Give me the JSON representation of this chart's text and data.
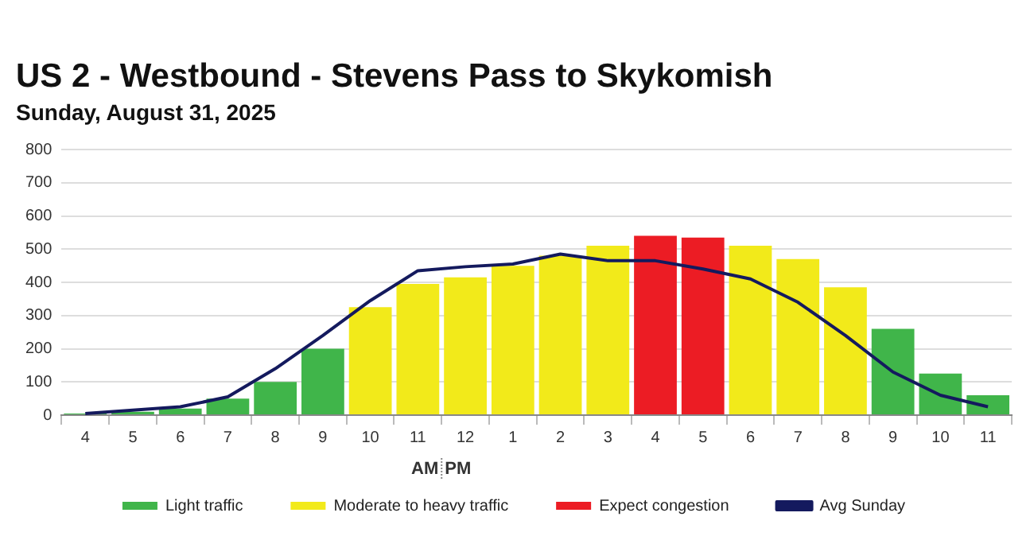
{
  "chart_data": {
    "type": "bar",
    "title": "US 2 - Westbound - Stevens Pass to Skykomish",
    "subtitle": "Sunday, August 31, 2025",
    "categories": [
      "4",
      "5",
      "6",
      "7",
      "8",
      "9",
      "10",
      "11",
      "12",
      "1",
      "2",
      "3",
      "4",
      "5",
      "6",
      "7",
      "8",
      "9",
      "10",
      "11"
    ],
    "series": [
      {
        "name": "Light traffic",
        "color": "#40b54a",
        "values": [
          5,
          10,
          20,
          50,
          100,
          200,
          null,
          null,
          null,
          null,
          null,
          null,
          null,
          null,
          null,
          null,
          null,
          260,
          125,
          60
        ]
      },
      {
        "name": "Moderate to heavy traffic",
        "color": "#f2ea1a",
        "values": [
          null,
          null,
          null,
          null,
          null,
          null,
          325,
          395,
          415,
          450,
          480,
          510,
          null,
          null,
          510,
          470,
          385,
          null,
          null,
          null
        ]
      },
      {
        "name": "Expect congestion",
        "color": "#ec1c24",
        "values": [
          null,
          null,
          null,
          null,
          null,
          null,
          null,
          null,
          null,
          null,
          null,
          null,
          540,
          535,
          null,
          null,
          null,
          null,
          null,
          null
        ]
      },
      {
        "name": "Avg Sunday",
        "type": "line",
        "color": "#141a5e",
        "values": [
          5,
          15,
          25,
          55,
          140,
          240,
          345,
          435,
          447,
          455,
          485,
          465,
          465,
          440,
          410,
          340,
          240,
          130,
          60,
          25
        ]
      }
    ],
    "ylim": [
      0,
      800
    ],
    "yticks": [
      0,
      100,
      200,
      300,
      400,
      500,
      600,
      700,
      800
    ],
    "grid": "y",
    "legend": "bottom",
    "marker": "none",
    "annotations": [
      "AM",
      "PM"
    ]
  }
}
